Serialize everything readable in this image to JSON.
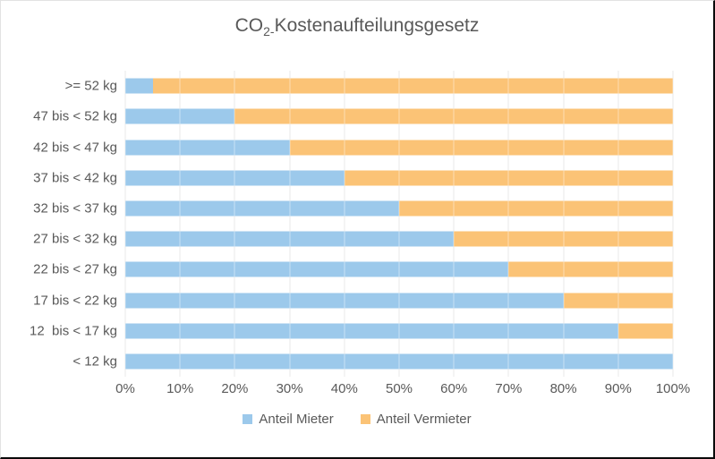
{
  "title": {
    "prefix": "CO",
    "subscript": "2-",
    "rest": "Kostenaufteilungsgesetz",
    "full": "CO2-Kostenaufteilungsgesetz"
  },
  "colors": {
    "mieter_blue": "#9CC9EB",
    "vermieter_orange": "#FBC376",
    "gridline": "#d9d9d9",
    "text": "#595959",
    "frame_border_dark": "#0a0a0a",
    "frame_border_light": "#e2e2e2"
  },
  "chart_data": {
    "type": "bar",
    "orientation": "horizontal",
    "stacked": true,
    "title": "CO2-Kostenaufteilungsgesetz",
    "categories": [
      ">= 52 kg",
      "47 bis < 52 kg",
      "42 bis < 47 kg",
      "37 bis < 42 kg",
      "32 bis < 37 kg",
      "27 bis < 32 kg",
      "22 bis < 27 kg",
      "17 bis < 22 kg",
      "12  bis < 17 kg",
      "< 12 kg"
    ],
    "series": [
      {
        "name": "Anteil Mieter",
        "color": "#9CC9EB",
        "values": [
          5,
          20,
          30,
          40,
          50,
          60,
          70,
          80,
          90,
          100
        ]
      },
      {
        "name": "Anteil Vermieter",
        "color": "#FBC376",
        "values": [
          95,
          80,
          70,
          60,
          50,
          40,
          30,
          20,
          10,
          0
        ]
      }
    ],
    "x_ticks": [
      "0%",
      "10%",
      "20%",
      "30%",
      "40%",
      "50%",
      "60%",
      "70%",
      "80%",
      "90%",
      "100%"
    ],
    "xlim": [
      0,
      100
    ],
    "xlabel": "",
    "ylabel": "",
    "grid": "vertical",
    "legend_position": "bottom"
  }
}
